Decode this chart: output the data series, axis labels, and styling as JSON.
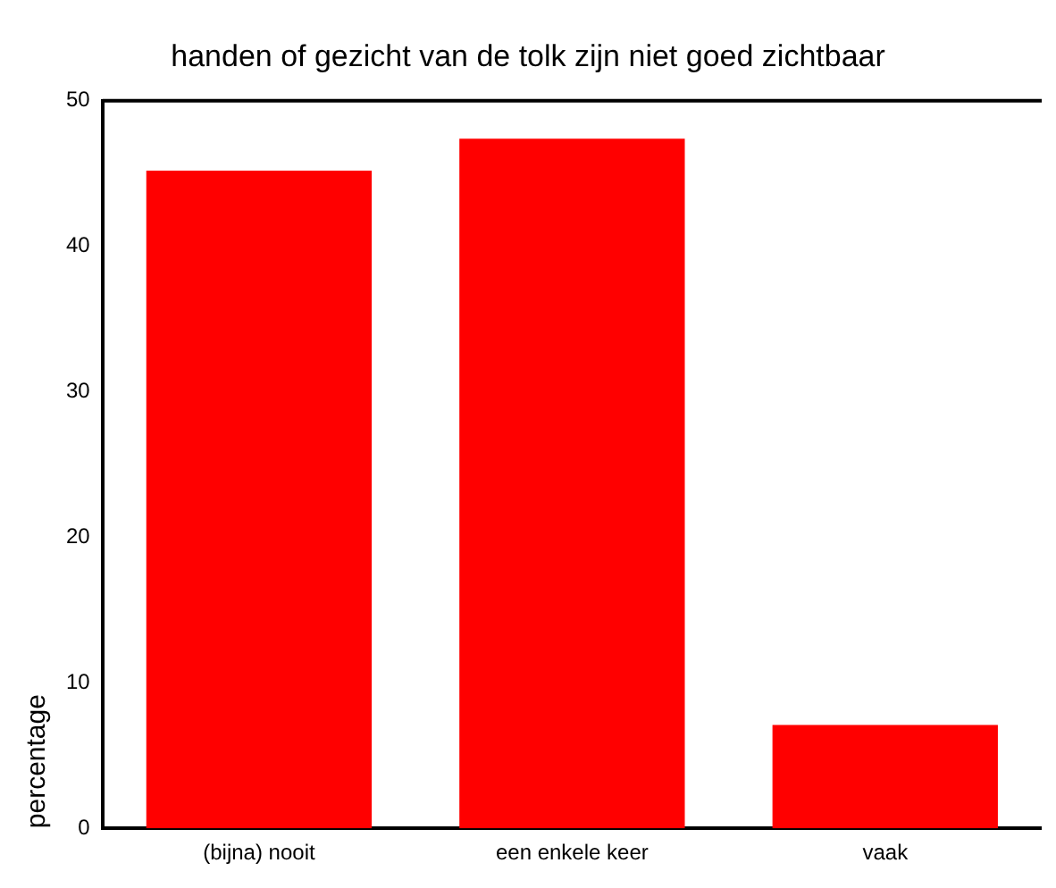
{
  "chart_data": {
    "type": "bar",
    "title": "handen of gezicht van de tolk zijn niet goed zichtbaar",
    "ylabel": "percentage",
    "categories": [
      "(bijna) nooit",
      "een enkele keer",
      "vaak"
    ],
    "values": [
      45.2,
      47.4,
      7.1
    ],
    "color": "#ff0000",
    "ylim": [
      0,
      50
    ],
    "yticks": [
      0,
      10,
      20,
      30,
      40,
      50
    ],
    "grid": false,
    "legend": false
  }
}
